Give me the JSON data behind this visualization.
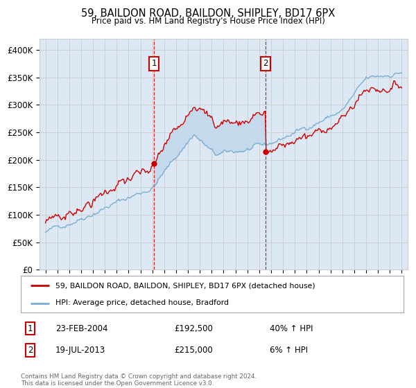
{
  "title": "59, BAILDON ROAD, BAILDON, SHIPLEY, BD17 6PX",
  "subtitle": "Price paid vs. HM Land Registry's House Price Index (HPI)",
  "sale1_date": 2004.14,
  "sale1_price": 192500,
  "sale1_label": "23-FEB-2004",
  "sale1_amount": "£192,500",
  "sale1_hpi_pct": "40% ↑ HPI",
  "sale2_date": 2013.55,
  "sale2_price": 215000,
  "sale2_label": "19-JUL-2013",
  "sale2_amount": "£215,000",
  "sale2_hpi_pct": "6% ↑ HPI",
  "legend1": "59, BAILDON ROAD, BAILDON, SHIPLEY, BD17 6PX (detached house)",
  "legend2": "HPI: Average price, detached house, Bradford",
  "footer": "Contains HM Land Registry data © Crown copyright and database right 2024.\nThis data is licensed under the Open Government Licence v3.0.",
  "ylim": [
    0,
    420000
  ],
  "xlim": [
    1994.5,
    2025.5
  ],
  "red_color": "#cc0000",
  "blue_color": "#7aadd4",
  "bg_color": "#dce9f5",
  "shade_color": "#c5d9ec",
  "grid_color": "#cccccc",
  "yticks": [
    0,
    50000,
    100000,
    150000,
    200000,
    250000,
    300000,
    350000,
    400000
  ],
  "ytick_labels": [
    "£0",
    "£50K",
    "£100K",
    "£150K",
    "£200K",
    "£250K",
    "£300K",
    "£350K",
    "£400K"
  ],
  "xticks": [
    1995,
    1996,
    1997,
    1998,
    1999,
    2000,
    2001,
    2002,
    2003,
    2004,
    2005,
    2006,
    2007,
    2008,
    2009,
    2010,
    2011,
    2012,
    2013,
    2014,
    2015,
    2016,
    2017,
    2018,
    2019,
    2020,
    2021,
    2022,
    2023,
    2024,
    2025
  ]
}
